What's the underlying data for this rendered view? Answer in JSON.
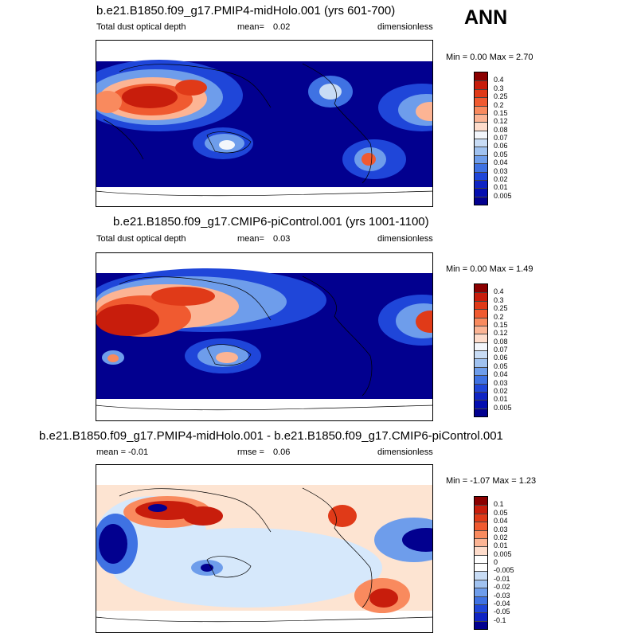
{
  "season": "ANN",
  "panels": [
    {
      "title": "b.e21.B1850.f09_g17.PMIP4-midHolo.001 (yrs 601-700)",
      "left_label": "Total dust optical depth",
      "mid_label": "mean=",
      "mid_value": "0.02",
      "right_label": "dimensionless",
      "minmax": "Min =   0.00 Max =   2.70",
      "colorbar": {
        "labels": [
          "0.4",
          "0.3",
          "0.25",
          "0.2",
          "0.15",
          "0.12",
          "0.08",
          "0.07",
          "0.06",
          "0.05",
          "0.04",
          "0.03",
          "0.02",
          "0.01",
          "0.005"
        ],
        "colors": [
          "#8b0000",
          "#c81d0c",
          "#e03a18",
          "#f05a30",
          "#f98a5e",
          "#fcb494",
          "#fedccb",
          "#f3f6fb",
          "#c8dcf5",
          "#a0c2f0",
          "#6e9deb",
          "#3f72e3",
          "#1f46d9",
          "#0f24c4",
          "#040eb0",
          "#02008f"
        ]
      }
    },
    {
      "title": "b.e21.B1850.f09_g17.CMIP6-piControl.001 (yrs 1001-1100)",
      "left_label": "Total dust optical depth",
      "mid_label": "mean=",
      "mid_value": "0.03",
      "right_label": "dimensionless",
      "minmax": "Min =   0.00 Max =   1.49",
      "colorbar": {
        "labels": [
          "0.4",
          "0.3",
          "0.25",
          "0.2",
          "0.15",
          "0.12",
          "0.08",
          "0.07",
          "0.06",
          "0.05",
          "0.04",
          "0.03",
          "0.02",
          "0.01",
          "0.005"
        ],
        "colors": [
          "#8b0000",
          "#c81d0c",
          "#e03a18",
          "#f05a30",
          "#f98a5e",
          "#fcb494",
          "#fedccb",
          "#f3f6fb",
          "#c8dcf5",
          "#a0c2f0",
          "#6e9deb",
          "#3f72e3",
          "#1f46d9",
          "#0f24c4",
          "#040eb0",
          "#02008f"
        ]
      }
    },
    {
      "title": "b.e21.B1850.f09_g17.PMIP4-midHolo.001 - b.e21.B1850.f09_g17.CMIP6-piControl.001",
      "left_label": "mean =  -0.01",
      "mid_label": "rmse =",
      "mid_value": "0.06",
      "right_label": "dimensionless",
      "minmax": "Min =  -1.07 Max =   1.23",
      "colorbar": {
        "labels": [
          "0.1",
          "0.05",
          "0.04",
          "0.03",
          "0.02",
          "0.01",
          "0.005",
          "0",
          "-0.005",
          "-0.01",
          "-0.02",
          "-0.03",
          "-0.04",
          "-0.05",
          "-0.1"
        ],
        "colors": [
          "#8b0000",
          "#c81d0c",
          "#e03a18",
          "#f05a30",
          "#f98a5e",
          "#fcb494",
          "#fedccb",
          "#ffffff",
          "#ffffff",
          "#c8dcf5",
          "#a0c2f0",
          "#6e9deb",
          "#3f72e3",
          "#1f46d9",
          "#0f24c4",
          "#02008f"
        ]
      }
    }
  ],
  "colors": {
    "background_low": "#02008f",
    "high_dust": "#c81d0c",
    "diff_positive": "#fde4d2",
    "diff_negative": "#d6e8fb"
  }
}
